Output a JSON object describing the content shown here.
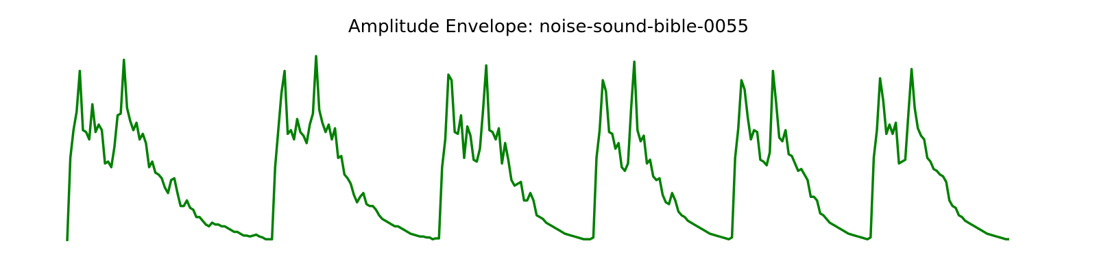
{
  "title": "Amplitude Envelope: noise-sound-bible-0055",
  "colors": {
    "line": "#008000",
    "background": "#ffffff"
  },
  "chart_data": {
    "type": "line",
    "title": "Amplitude Envelope: noise-sound-bible-0055",
    "xlabel": "",
    "ylabel": "",
    "axes_visible": false,
    "grid": false,
    "legend": "none",
    "ylim": [
      0,
      1
    ],
    "series": [
      {
        "values": [
          0.0,
          0.45,
          0.6,
          0.7,
          0.92,
          0.6,
          0.59,
          0.55,
          0.74,
          0.59,
          0.63,
          0.6,
          0.42,
          0.43,
          0.4,
          0.51,
          0.68,
          0.69,
          0.98,
          0.72,
          0.65,
          0.6,
          0.64,
          0.55,
          0.58,
          0.53,
          0.4,
          0.43,
          0.37,
          0.36,
          0.34,
          0.29,
          0.26,
          0.33,
          0.34,
          0.26,
          0.19,
          0.19,
          0.22,
          0.18,
          0.17,
          0.13,
          0.13,
          0.11,
          0.09,
          0.08,
          0.1,
          0.09,
          0.09,
          0.08,
          0.08,
          0.07,
          0.06,
          0.05,
          0.05,
          0.04,
          0.03,
          0.03,
          0.025,
          0.03,
          0.035,
          0.025,
          0.02,
          0.01,
          0.01,
          0.01,
          0.4,
          0.6,
          0.8,
          0.92,
          0.58,
          0.6,
          0.55,
          0.66,
          0.59,
          0.57,
          0.53,
          0.63,
          0.69,
          1.0,
          0.71,
          0.64,
          0.59,
          0.63,
          0.55,
          0.61,
          0.45,
          0.46,
          0.36,
          0.34,
          0.31,
          0.25,
          0.21,
          0.24,
          0.26,
          0.2,
          0.19,
          0.19,
          0.17,
          0.14,
          0.12,
          0.11,
          0.1,
          0.09,
          0.08,
          0.08,
          0.07,
          0.06,
          0.05,
          0.04,
          0.035,
          0.03,
          0.025,
          0.025,
          0.02,
          0.02,
          0.01,
          0.015,
          0.015,
          0.4,
          0.55,
          0.9,
          0.87,
          0.59,
          0.58,
          0.68,
          0.45,
          0.62,
          0.57,
          0.44,
          0.43,
          0.5,
          0.71,
          0.95,
          0.6,
          0.59,
          0.55,
          0.61,
          0.42,
          0.53,
          0.44,
          0.33,
          0.3,
          0.31,
          0.32,
          0.22,
          0.22,
          0.26,
          0.22,
          0.14,
          0.13,
          0.12,
          0.1,
          0.09,
          0.08,
          0.07,
          0.06,
          0.05,
          0.04,
          0.035,
          0.03,
          0.025,
          0.02,
          0.015,
          0.01,
          0.01,
          0.01,
          0.02,
          0.45,
          0.6,
          0.87,
          0.81,
          0.59,
          0.58,
          0.5,
          0.53,
          0.4,
          0.38,
          0.42,
          0.72,
          0.97,
          0.6,
          0.54,
          0.57,
          0.42,
          0.44,
          0.35,
          0.33,
          0.34,
          0.25,
          0.21,
          0.2,
          0.26,
          0.22,
          0.16,
          0.14,
          0.13,
          0.11,
          0.1,
          0.09,
          0.08,
          0.07,
          0.06,
          0.05,
          0.04,
          0.035,
          0.03,
          0.025,
          0.02,
          0.015,
          0.01,
          0.02,
          0.45,
          0.61,
          0.87,
          0.82,
          0.67,
          0.55,
          0.6,
          0.59,
          0.44,
          0.43,
          0.41,
          0.48,
          0.92,
          0.75,
          0.56,
          0.54,
          0.6,
          0.47,
          0.46,
          0.42,
          0.38,
          0.39,
          0.36,
          0.33,
          0.24,
          0.24,
          0.22,
          0.15,
          0.14,
          0.12,
          0.1,
          0.09,
          0.08,
          0.07,
          0.06,
          0.05,
          0.04,
          0.035,
          0.03,
          0.025,
          0.02,
          0.015,
          0.01,
          0.02,
          0.45,
          0.6,
          0.88,
          0.76,
          0.58,
          0.63,
          0.58,
          0.64,
          0.42,
          0.43,
          0.44,
          0.69,
          0.93,
          0.72,
          0.61,
          0.57,
          0.55,
          0.45,
          0.43,
          0.39,
          0.38,
          0.36,
          0.35,
          0.32,
          0.22,
          0.19,
          0.18,
          0.14,
          0.13,
          0.11,
          0.1,
          0.09,
          0.08,
          0.07,
          0.06,
          0.05,
          0.04,
          0.035,
          0.03,
          0.025,
          0.02,
          0.015,
          0.01,
          0.01
        ]
      }
    ]
  }
}
